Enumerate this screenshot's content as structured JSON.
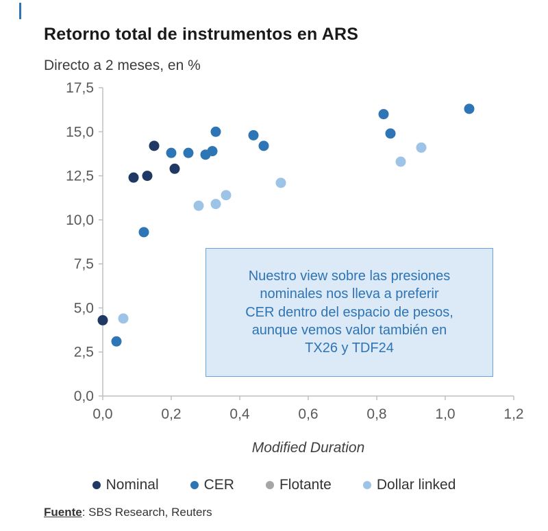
{
  "page": {
    "edge_mark_color": "#2e75b6"
  },
  "header": {
    "title": "Retorno total de instrumentos en ARS",
    "subtitle": "Directo a 2 meses, en %"
  },
  "chart_data": {
    "type": "scatter",
    "title": "Retorno total de instrumentos en ARS",
    "subtitle": "Directo a 2 meses, en %",
    "xlabel": "Modified Duration",
    "ylabel": "",
    "xlim": [
      0.0,
      1.2
    ],
    "ylim": [
      0.0,
      17.5
    ],
    "grid": false,
    "legend_position": "bottom",
    "x_tick_values": [
      0.0,
      0.2,
      0.4,
      0.6,
      0.8,
      1.0,
      1.2
    ],
    "x_tick_labels": [
      "0,0",
      "0,2",
      "0,4",
      "0,6",
      "0,8",
      "1,0",
      "1,2"
    ],
    "y_tick_values": [
      0.0,
      2.5,
      5.0,
      7.5,
      10.0,
      12.5,
      15.0,
      17.5
    ],
    "y_tick_labels": [
      "0,0",
      "2,5",
      "5,0",
      "7,5",
      "10,0",
      "12,5",
      "15,0",
      "17,5"
    ],
    "series": [
      {
        "name": "Nominal",
        "color": "#1f3864",
        "points": [
          [
            0.0,
            4.3
          ],
          [
            0.09,
            12.4
          ],
          [
            0.13,
            12.5
          ],
          [
            0.15,
            14.2
          ],
          [
            0.21,
            12.9
          ]
        ]
      },
      {
        "name": "CER",
        "color": "#2e75b6",
        "points": [
          [
            0.04,
            3.1
          ],
          [
            0.12,
            9.3
          ],
          [
            0.2,
            13.8
          ],
          [
            0.25,
            13.8
          ],
          [
            0.3,
            13.7
          ],
          [
            0.32,
            13.9
          ],
          [
            0.33,
            15.0
          ],
          [
            0.44,
            14.8
          ],
          [
            0.47,
            14.2
          ],
          [
            0.82,
            16.0
          ],
          [
            0.84,
            14.9
          ],
          [
            1.07,
            16.3
          ]
        ]
      },
      {
        "name": "Flotante",
        "color": "#a6a6a6",
        "points": []
      },
      {
        "name": "Dollar linked",
        "color": "#9dc3e6",
        "points": [
          [
            0.06,
            4.4
          ],
          [
            0.28,
            10.8
          ],
          [
            0.33,
            10.9
          ],
          [
            0.36,
            11.4
          ],
          [
            0.52,
            12.1
          ],
          [
            0.87,
            13.3
          ],
          [
            0.93,
            14.1
          ]
        ]
      }
    ],
    "annotation": {
      "lines": [
        "Nuestro view sobre las presiones",
        "nominales nos lleva a preferir",
        "CER dentro del espacio de pesos,",
        "aunque vemos valor también en",
        "TX26 y TDF24"
      ],
      "text": "Nuestro view sobre las presiones nominales nos lleva a preferir CER dentro del espacio de pesos, aunque vemos valor también en TX26 y TDF24",
      "x_range": [
        0.3,
        1.14
      ],
      "y_range": [
        1.1,
        8.4
      ],
      "fill": "#dce9f6",
      "border": "#6aa3d8",
      "text_color": "#2e74b5"
    }
  },
  "footer": {
    "source_label": "Fuente",
    "source_rest": ": SBS Research, Reuters"
  }
}
